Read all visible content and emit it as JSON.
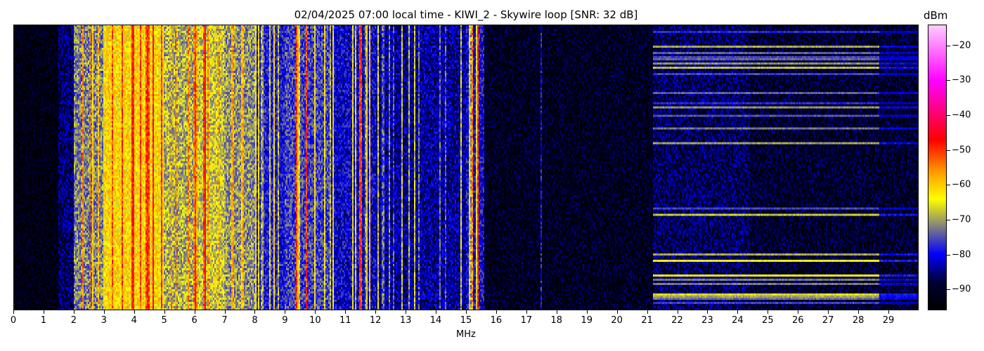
{
  "chart_data": {
    "type": "heatmap",
    "title": "02/04/2025 07:00 local time - KIWI_2 - Skywire loop [SNR: 32 dB]",
    "xlabel": "MHz",
    "ylabel": "",
    "xlim": [
      0,
      30
    ],
    "x_ticks": [
      "0",
      "1",
      "2",
      "3",
      "4",
      "5",
      "6",
      "7",
      "8",
      "9",
      "10",
      "11",
      "12",
      "13",
      "14",
      "15",
      "16",
      "17",
      "18",
      "19",
      "20",
      "21",
      "22",
      "23",
      "24",
      "25",
      "26",
      "27",
      "28",
      "29"
    ],
    "colorbar": {
      "label": "dBm",
      "range": [
        -96,
        -14
      ],
      "ticks": [
        "-20",
        "-30",
        "-40",
        "-50",
        "-60",
        "-70",
        "-80",
        "-90"
      ],
      "colormap_stops": [
        {
          "value": -96,
          "color": "#000000"
        },
        {
          "value": -88,
          "color": "#000033"
        },
        {
          "value": -80,
          "color": "#0000ff"
        },
        {
          "value": -72,
          "color": "#808080"
        },
        {
          "value": -64,
          "color": "#ffff00"
        },
        {
          "value": -56,
          "color": "#ff9900"
        },
        {
          "value": -47,
          "color": "#ff0000"
        },
        {
          "value": -30,
          "color": "#ff00ff"
        },
        {
          "value": -14,
          "color": "#ffccff"
        }
      ]
    },
    "band_levels_dbm": [
      {
        "from": 0,
        "to": 1.5,
        "level": -93
      },
      {
        "from": 1.5,
        "to": 2.0,
        "level": -86
      },
      {
        "from": 2.0,
        "to": 3.0,
        "level": -72
      },
      {
        "from": 3.0,
        "to": 5.0,
        "level": -62
      },
      {
        "from": 5.0,
        "to": 6.0,
        "level": -69
      },
      {
        "from": 6.0,
        "to": 7.0,
        "level": -67
      },
      {
        "from": 7.0,
        "to": 8.0,
        "level": -71
      },
      {
        "from": 8.0,
        "to": 9.0,
        "level": -79
      },
      {
        "from": 9.0,
        "to": 10.5,
        "level": -76
      },
      {
        "from": 10.5,
        "to": 12.0,
        "level": -81
      },
      {
        "from": 12.0,
        "to": 15.0,
        "level": -84
      },
      {
        "from": 15.0,
        "to": 15.6,
        "level": -80
      },
      {
        "from": 15.6,
        "to": 21.2,
        "level": -91
      },
      {
        "from": 21.2,
        "to": 24.4,
        "level": -87
      },
      {
        "from": 24.4,
        "to": 30.0,
        "level": -90
      }
    ],
    "strong_carriers_mhz": [
      {
        "f": 2.6,
        "level": -52
      },
      {
        "f": 4.2,
        "level": -50
      },
      {
        "f": 6.0,
        "level": -55
      },
      {
        "f": 6.35,
        "level": -45
      },
      {
        "f": 7.3,
        "level": -60
      },
      {
        "f": 9.4,
        "level": -50
      },
      {
        "f": 9.7,
        "level": -50
      },
      {
        "f": 10.0,
        "level": -62
      },
      {
        "f": 11.5,
        "level": -50
      },
      {
        "f": 11.8,
        "level": -60
      },
      {
        "f": 15.2,
        "level": -55
      },
      {
        "f": 15.4,
        "level": -50
      },
      {
        "f": 17.5,
        "level": -80
      }
    ]
  }
}
